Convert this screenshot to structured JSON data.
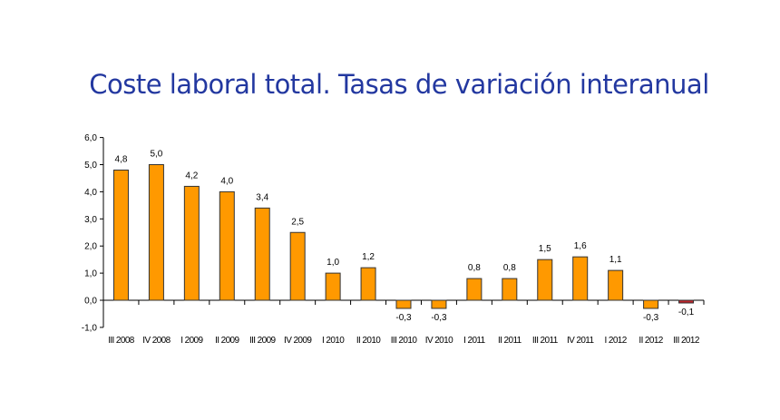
{
  "chart_data": {
    "type": "bar",
    "title": "Coste laboral total. Tasas de variación interanual",
    "xlabel": "",
    "ylabel": "",
    "ylim": [
      -1,
      6
    ],
    "yticks": [
      "-1,0",
      "0,0",
      "1,0",
      "2,0",
      "3,0",
      "4,0",
      "5,0",
      "6,0"
    ],
    "categories": [
      "III 2008",
      "IV 2008",
      "I 2009",
      "II 2009",
      "III 2009",
      "IV 2009",
      "I 2010",
      "II 2010",
      "III 2010",
      "IV 2010",
      "I 2011",
      "II 2011",
      "III 2011",
      "IV 2011",
      "I 2012",
      "II 2012",
      "III 2012"
    ],
    "values": [
      4.8,
      5.0,
      4.2,
      4.0,
      3.4,
      2.5,
      1.0,
      1.2,
      -0.3,
      -0.3,
      0.8,
      0.8,
      1.5,
      1.6,
      1.1,
      -0.3,
      -0.1
    ],
    "labels": [
      "4,8",
      "5,0",
      "4,2",
      "4,0",
      "3,4",
      "2,5",
      "1,0",
      "1,2",
      "-0,3",
      "-0,3",
      "0,8",
      "0,8",
      "1,5",
      "1,6",
      "1,1",
      "-0,3",
      "-0,1"
    ],
    "grid": false,
    "colors": {
      "bar": "#ff9900",
      "highlight": "#c0262c",
      "title": "#2338a0"
    }
  }
}
